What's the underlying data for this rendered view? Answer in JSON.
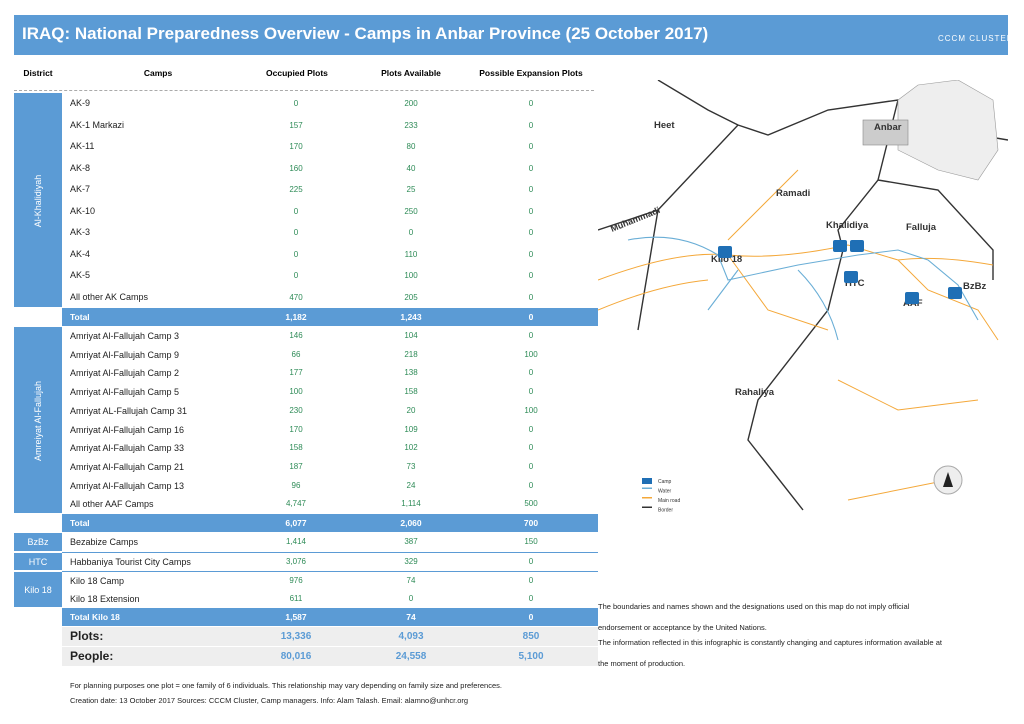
{
  "header": {
    "title": "IRAQ: National Preparedness Overview - Camps in Anbar Province (25 October 2017)",
    "logo": "CCCM CLUSTER"
  },
  "table": {
    "headers": [
      "District",
      "Camps",
      "Occupied Plots",
      "Plots Available",
      "Possible Expansion Plots"
    ],
    "groups": [
      {
        "district": "Al-Khalidiyah",
        "rows": [
          [
            "AK-9",
            "0",
            "200",
            "0"
          ],
          [
            "AK-1 Markazi",
            "157",
            "233",
            "0"
          ],
          [
            "AK-11",
            "170",
            "80",
            "0"
          ],
          [
            "AK-8",
            "160",
            "40",
            "0"
          ],
          [
            "AK-7",
            "225",
            "25",
            "0"
          ],
          [
            "AK-10",
            "0",
            "250",
            "0"
          ],
          [
            "AK-3",
            "0",
            "0",
            "0"
          ],
          [
            "AK-4",
            "0",
            "110",
            "0"
          ],
          [
            "AK-5",
            "0",
            "100",
            "0"
          ],
          [
            "All other AK Camps",
            "470",
            "205",
            "0"
          ]
        ],
        "total": [
          "Total",
          "1,182",
          "1,243",
          "0"
        ]
      },
      {
        "district": "Amreiyat Al-Fallujah",
        "rows": [
          [
            "Amriyat Al-Fallujah Camp 3",
            "146",
            "104",
            "0"
          ],
          [
            "Amriyat Al-Fallujah Camp 9",
            "66",
            "218",
            "100"
          ],
          [
            "Amriyat Al-Fallujah Camp 2",
            "177",
            "138",
            "0"
          ],
          [
            "Amriyat Al-Fallujah Camp 5",
            "100",
            "158",
            "0"
          ],
          [
            "Amriyat AL-Fallujah Camp 31",
            "230",
            "20",
            "100"
          ],
          [
            "Amriyat Al-Fallujah Camp 16",
            "170",
            "109",
            "0"
          ],
          [
            "Amriyat Al-Fallujah Camp 33",
            "158",
            "102",
            "0"
          ],
          [
            "Amriyat Al-Fallujah Camp 21",
            "187",
            "73",
            "0"
          ],
          [
            "Amriyat Al-Fallujah Camp 13",
            "96",
            "24",
            "0"
          ],
          [
            "All other AAF Camps",
            "4,747",
            "1,114",
            "500"
          ]
        ],
        "total": [
          "Total",
          "6,077",
          "2,060",
          "700"
        ]
      },
      {
        "district": "BzBz",
        "rows": [
          [
            "Bezabize Camps",
            "1,414",
            "387",
            "150"
          ]
        ]
      },
      {
        "district": "HTC",
        "rows": [
          [
            "Habbaniya Tourist City Camps",
            "3,076",
            "329",
            "0"
          ]
        ]
      },
      {
        "district": "Kilo 18",
        "rows": [
          [
            "Kilo 18 Camp",
            "976",
            "74",
            "0"
          ],
          [
            "Kilo 18 Extension",
            "611",
            "0",
            "0"
          ]
        ],
        "total": [
          "Total Kilo 18",
          "1,587",
          "74",
          "0"
        ]
      }
    ],
    "summary": [
      [
        "Plots:",
        "13,336",
        "4,093",
        "850"
      ],
      [
        "People:",
        "80,016",
        "24,558",
        "5,100"
      ]
    ]
  },
  "map": {
    "labels": [
      "Heet",
      "Ramadi",
      "Muhammadi",
      "Khalidiya",
      "Falluja",
      "Kilo 18",
      "HTC",
      "AAF",
      "BzBz",
      "Rahaliya",
      "Anbar"
    ],
    "legend": [
      "Camp",
      "Water",
      "Main road",
      "Border"
    ]
  },
  "disclaimer": [
    "The boundaries and names shown and the designations used on this map do not imply official endorsement or acceptance by the United Nations.",
    "The information reflected in this infographic is constantly changing and captures information available at the moment of production."
  ],
  "notes": [
    "For planning purposes one plot = one family of 6 individuals. This relationship may vary depending on family size and preferences.",
    "Creation date: 13 October 2017 Sources: CCCM Cluster, Camp managers. Info: Alam Talash. Email: alamno@unhcr.org"
  ]
}
